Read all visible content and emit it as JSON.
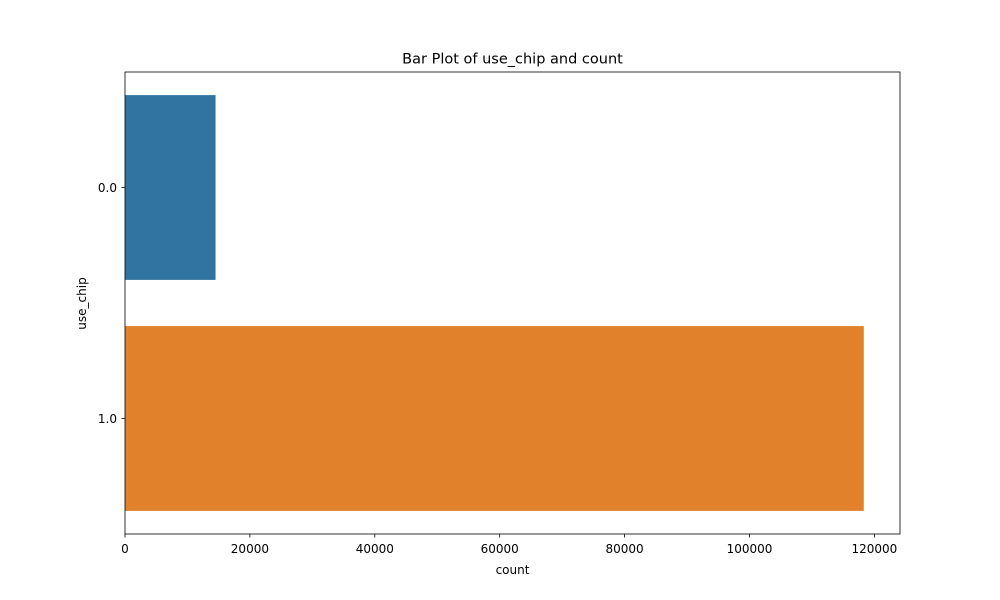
{
  "chart_data": {
    "type": "bar",
    "orientation": "horizontal",
    "title": "Bar Plot of use_chip and count",
    "xlabel": "count",
    "ylabel": "use_chip",
    "categories": [
      "0.0",
      "1.0"
    ],
    "values": [
      14500,
      118300
    ],
    "colors": [
      "#3274a1",
      "#e1812c"
    ],
    "xlim": [
      0,
      124100
    ],
    "xticks": [
      0,
      20000,
      40000,
      60000,
      80000,
      100000,
      120000
    ],
    "xtick_labels": [
      "0",
      "20000",
      "40000",
      "60000",
      "80000",
      "100000",
      "120000"
    ],
    "grid": false,
    "legend": "none"
  }
}
